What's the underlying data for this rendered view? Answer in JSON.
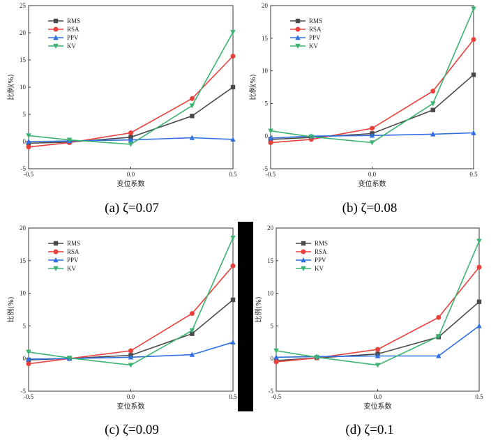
{
  "colors": {
    "RMS": "#4a4a4a",
    "RSA": "#e8413c",
    "PPV": "#2f6fe0",
    "KV": "#3cb371"
  },
  "legend": [
    "RMS",
    "RSA",
    "PPV",
    "KV"
  ],
  "chart_data": [
    {
      "type": "line",
      "caption": "(a) ζ=0.07",
      "xlabel": "变位系数",
      "ylabel": "比例(%)",
      "xlim": [
        -0.5,
        0.5
      ],
      "ylim": [
        -5,
        25
      ],
      "xticks": [
        -0.5,
        0.0,
        0.5
      ],
      "yticks": [
        -5,
        0,
        5,
        10,
        15,
        20,
        25
      ],
      "x": [
        -0.5,
        -0.3,
        0.0,
        0.3,
        0.5
      ],
      "series": [
        {
          "name": "RMS",
          "marker": "square",
          "values": [
            -0.3,
            -0.1,
            0.8,
            4.7,
            10.0
          ]
        },
        {
          "name": "RSA",
          "marker": "circle",
          "values": [
            -1.0,
            -0.2,
            1.6,
            7.9,
            15.7
          ]
        },
        {
          "name": "PPV",
          "marker": "triangle-up",
          "values": [
            0.0,
            0.1,
            0.3,
            0.7,
            0.4
          ]
        },
        {
          "name": "KV",
          "marker": "triangle-down",
          "values": [
            1.1,
            0.3,
            -0.5,
            6.6,
            20.1
          ]
        }
      ]
    },
    {
      "type": "line",
      "caption": "(b) ζ=0.08",
      "xlabel": "变位系数",
      "ylabel": "比例(%)",
      "xlim": [
        -0.5,
        0.5
      ],
      "ylim": [
        -5,
        20
      ],
      "xticks": [
        -0.5,
        0.0,
        0.5
      ],
      "yticks": [
        -5,
        0,
        5,
        10,
        15,
        20
      ],
      "x": [
        -0.5,
        -0.3,
        0.0,
        0.3,
        0.5
      ],
      "series": [
        {
          "name": "RMS",
          "marker": "square",
          "values": [
            -0.5,
            -0.2,
            0.4,
            4.0,
            9.4
          ]
        },
        {
          "name": "RSA",
          "marker": "circle",
          "values": [
            -1.0,
            -0.5,
            1.2,
            6.9,
            14.8
          ]
        },
        {
          "name": "PPV",
          "marker": "triangle-up",
          "values": [
            -0.3,
            0.0,
            0.1,
            0.3,
            0.5
          ]
        },
        {
          "name": "KV",
          "marker": "triangle-down",
          "values": [
            0.8,
            -0.1,
            -1.0,
            5.0,
            19.5
          ]
        }
      ]
    },
    {
      "type": "line",
      "caption": "(c) ζ=0.09",
      "xlabel": "变位系数",
      "ylabel": "比例(%)",
      "xlim": [
        -0.5,
        0.5
      ],
      "ylim": [
        -5,
        20
      ],
      "xticks": [
        -0.5,
        0.0,
        0.5
      ],
      "yticks": [
        -5,
        0,
        5,
        10,
        15,
        20
      ],
      "x": [
        -0.5,
        -0.3,
        0.0,
        0.3,
        0.5
      ],
      "series": [
        {
          "name": "RMS",
          "marker": "square",
          "values": [
            -0.2,
            0.0,
            0.5,
            3.8,
            9.0
          ]
        },
        {
          "name": "RSA",
          "marker": "circle",
          "values": [
            -0.8,
            0.0,
            1.2,
            6.9,
            14.2
          ]
        },
        {
          "name": "PPV",
          "marker": "triangle-up",
          "values": [
            -0.1,
            0.0,
            0.2,
            0.6,
            2.5
          ]
        },
        {
          "name": "KV",
          "marker": "triangle-down",
          "values": [
            1.0,
            0.1,
            -1.0,
            4.3,
            18.5
          ]
        }
      ]
    },
    {
      "type": "line",
      "caption": "(d) ζ=0.1",
      "xlabel": "变位系数",
      "ylabel": "比例(%)",
      "xlim": [
        -0.5,
        0.5
      ],
      "ylim": [
        -5,
        20
      ],
      "xticks": [
        -0.5,
        0.0,
        0.5
      ],
      "yticks": [
        -5,
        0,
        5,
        10,
        15,
        20
      ],
      "x": [
        -0.5,
        -0.3,
        0.0,
        0.3,
        0.5
      ],
      "series": [
        {
          "name": "RMS",
          "marker": "square",
          "values": [
            -0.3,
            0.1,
            0.7,
            3.3,
            8.7
          ]
        },
        {
          "name": "RSA",
          "marker": "circle",
          "values": [
            -0.5,
            0.1,
            1.4,
            6.3,
            14.0
          ]
        },
        {
          "name": "PPV",
          "marker": "triangle-up",
          "values": [
            0.2,
            0.3,
            0.4,
            0.4,
            5.0
          ]
        },
        {
          "name": "KV",
          "marker": "triangle-down",
          "values": [
            1.2,
            0.2,
            -1.0,
            3.4,
            18.0
          ]
        }
      ]
    }
  ]
}
